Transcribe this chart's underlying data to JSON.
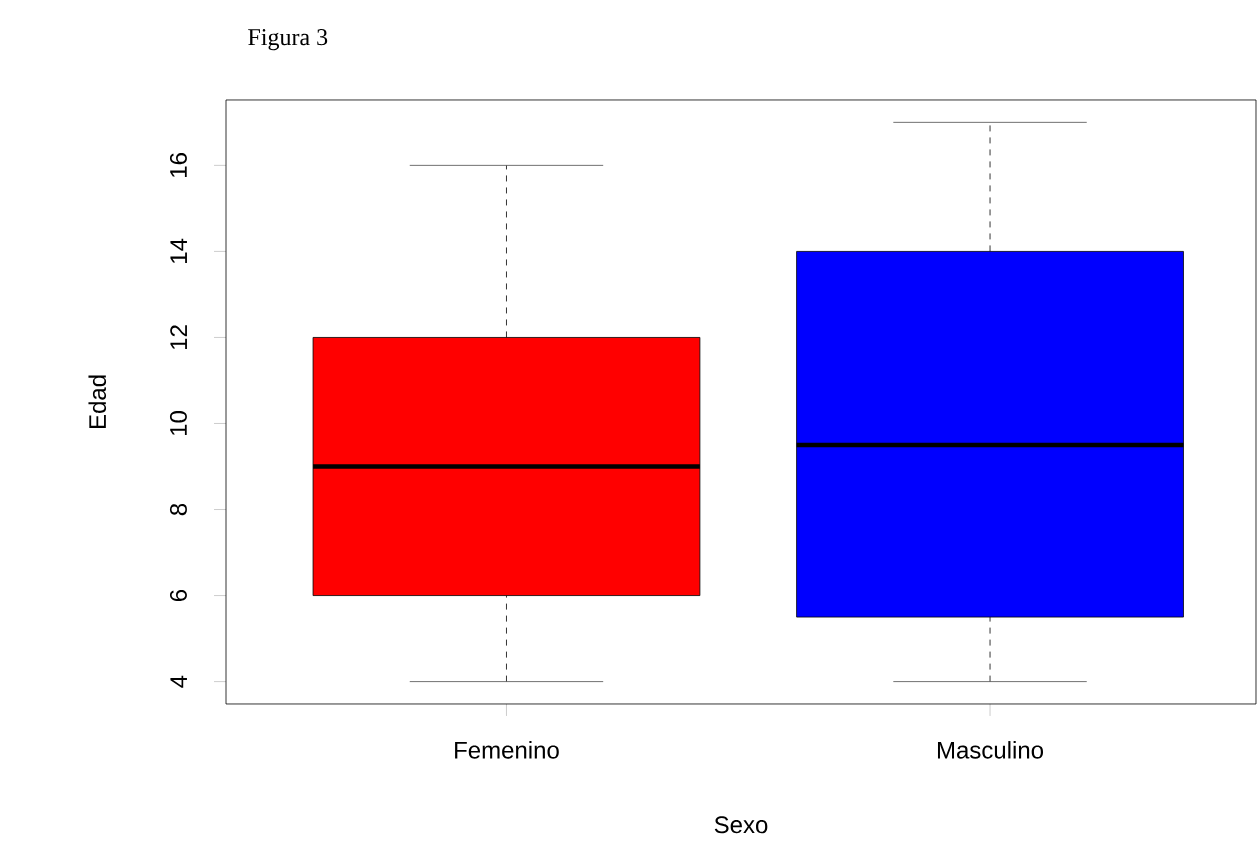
{
  "chart_data": {
    "type": "box",
    "title": "Figura 3",
    "xlabel": "Sexo",
    "ylabel": "Edad",
    "categories": [
      "Femenino",
      "Masculino"
    ],
    "boxes": [
      {
        "low": 4,
        "q1": 6,
        "median": 9,
        "q3": 12,
        "high": 16
      },
      {
        "low": 4,
        "q1": 5.5,
        "median": 9.5,
        "q3": 14,
        "high": 17
      }
    ],
    "colors": [
      "#ff0000",
      "#0000ff"
    ],
    "ylim": [
      3.48,
      17.52
    ],
    "yticks": [
      4,
      6,
      8,
      10,
      12,
      14,
      16
    ]
  }
}
